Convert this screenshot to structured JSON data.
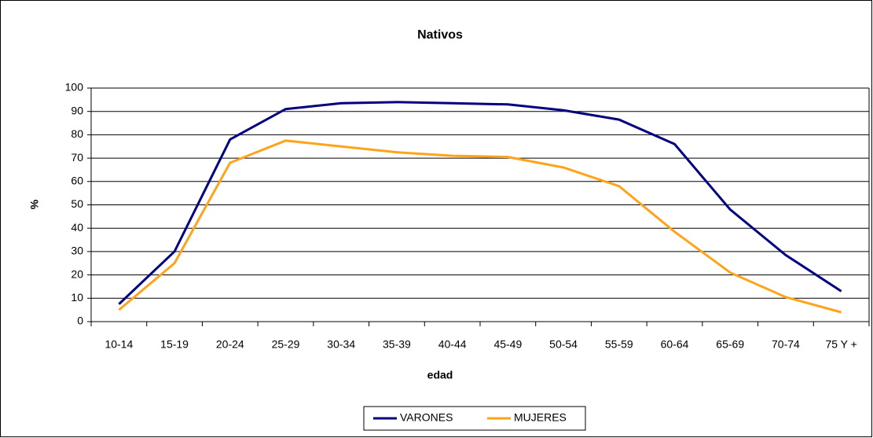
{
  "chart_data": {
    "type": "line",
    "title": "Nativos",
    "x_label": "edad",
    "y_label": "%",
    "categories": [
      "10-14",
      "15-19",
      "20-24",
      "25-29",
      "30-34",
      "35-39",
      "40-44",
      "45-49",
      "50-54",
      "55-59",
      "60-64",
      "65-69",
      "70-74",
      "75 Y +"
    ],
    "series": [
      {
        "name": "VARONES",
        "color": "#000080",
        "values": [
          7.5,
          30,
          78,
          91,
          93.5,
          94,
          93.5,
          93,
          90.5,
          86.5,
          76,
          48,
          28.5,
          13
        ]
      },
      {
        "name": "MUJERES",
        "color": "#ffa31a",
        "values": [
          5,
          25,
          68,
          77.5,
          75,
          72.5,
          71,
          70.5,
          66,
          58,
          38.5,
          21,
          10.5,
          4
        ]
      }
    ],
    "ylim": [
      0,
      100
    ],
    "yticks": [
      0,
      10,
      20,
      30,
      40,
      50,
      60,
      70,
      80,
      90,
      100
    ],
    "grid": true,
    "legend": "bottom"
  }
}
